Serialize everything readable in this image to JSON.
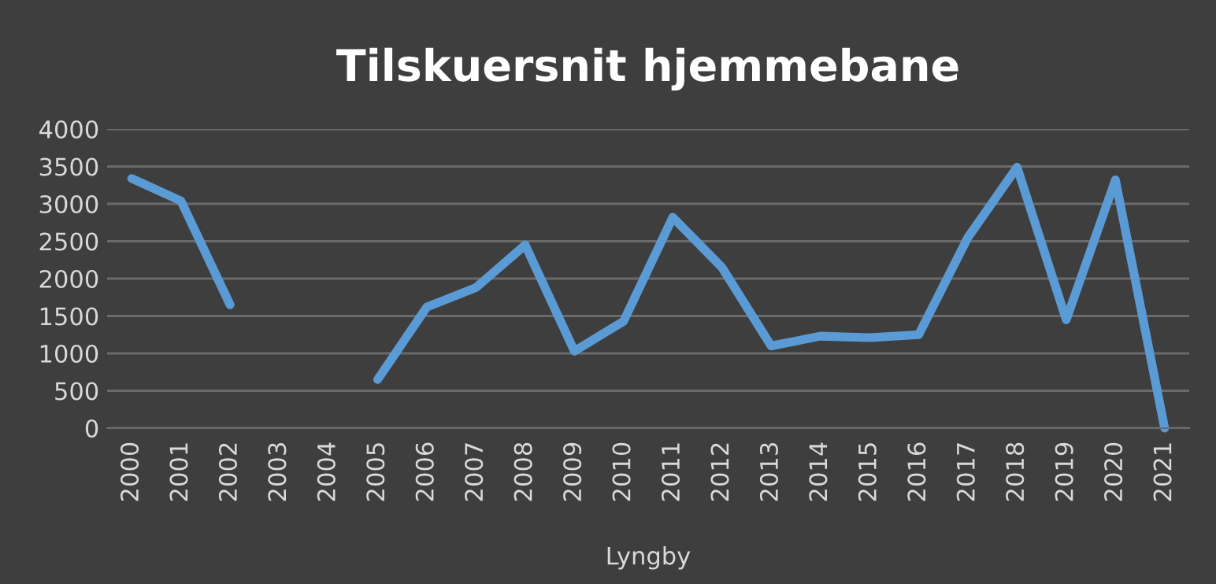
{
  "chart_data": {
    "type": "line",
    "title": "Tilskuersnit hjemmebane",
    "xlabel": "Lyngby",
    "categories": [
      "2000",
      "2001",
      "2002",
      "2003",
      "2004",
      "2005",
      "2006",
      "2007",
      "2008",
      "2009",
      "2010",
      "2011",
      "2012",
      "2013",
      "2014",
      "2015",
      "2016",
      "2017",
      "2018",
      "2019",
      "2020",
      "2021"
    ],
    "series": [
      {
        "color": "#5b9bd5",
        "values": [
          3340,
          3040,
          1650,
          null,
          null,
          650,
          1620,
          1880,
          2450,
          1030,
          1430,
          2820,
          2150,
          1100,
          1230,
          1210,
          1250,
          2550,
          3490,
          1450,
          3320,
          0
        ]
      }
    ],
    "ylim": [
      0,
      4000
    ],
    "yticks": [
      0,
      500,
      1000,
      1500,
      2000,
      2500,
      3000,
      3500,
      4000
    ],
    "grid": "y",
    "legend": false,
    "marker": "none",
    "line_style": "solid"
  }
}
